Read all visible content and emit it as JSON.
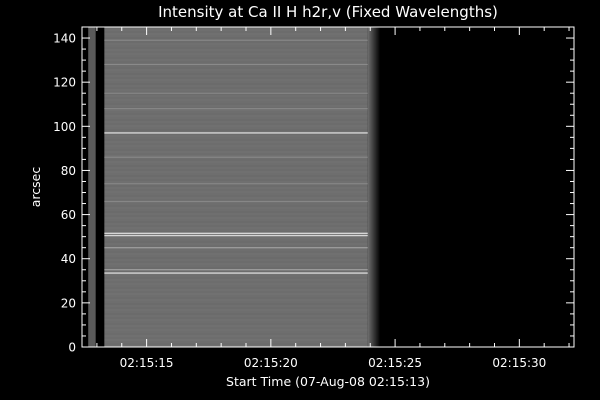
{
  "chart_data": {
    "type": "heatmap",
    "title": "Intensity at Ca II H h2r,v (Fixed Wavelengths)",
    "xlabel": "Start Time (07-Aug-08 02:15:13)",
    "ylabel": "arcsec",
    "xlim": [
      -0.6,
      19.2
    ],
    "ylim": [
      0,
      145
    ],
    "x_ticks": [
      {
        "value": 2,
        "label": "02:15:15"
      },
      {
        "value": 7,
        "label": "02:15:20"
      },
      {
        "value": 12,
        "label": "02:15:25"
      },
      {
        "value": 17,
        "label": "02:15:30"
      }
    ],
    "y_ticks": [
      {
        "value": 0,
        "label": "0"
      },
      {
        "value": 20,
        "label": "20"
      },
      {
        "value": 40,
        "label": "40"
      },
      {
        "value": 60,
        "label": "60"
      },
      {
        "value": 80,
        "label": "80"
      },
      {
        "value": 100,
        "label": "100"
      },
      {
        "value": 120,
        "label": "120"
      },
      {
        "value": 140,
        "label": "140"
      }
    ],
    "x_minor_step": 1,
    "y_minor_step": 5,
    "data_extent": {
      "x_start": 0.3,
      "x_end": 10.9,
      "fade_end": 11.4
    },
    "narrow_strip": {
      "x_start": -0.35,
      "x_end": -0.05
    },
    "base_color": "#6e6e6e",
    "strip_color": "#5a5a5a",
    "background_color": "#000000",
    "features": [
      {
        "y": 97,
        "intensity": "bright"
      },
      {
        "y": 50.5,
        "intensity": "bright"
      },
      {
        "y": 51.5,
        "intensity": "bright"
      },
      {
        "y": 33.5,
        "intensity": "bright"
      },
      {
        "y": 35,
        "intensity": "medium"
      },
      {
        "y": 45,
        "intensity": "medium"
      },
      {
        "y": 66,
        "intensity": "faint"
      },
      {
        "y": 74,
        "intensity": "faint"
      },
      {
        "y": 86,
        "intensity": "faint"
      },
      {
        "y": 108,
        "intensity": "faint"
      },
      {
        "y": 115,
        "intensity": "faint"
      },
      {
        "y": 128,
        "intensity": "faint"
      },
      {
        "y": 139,
        "intensity": "faint"
      }
    ]
  }
}
